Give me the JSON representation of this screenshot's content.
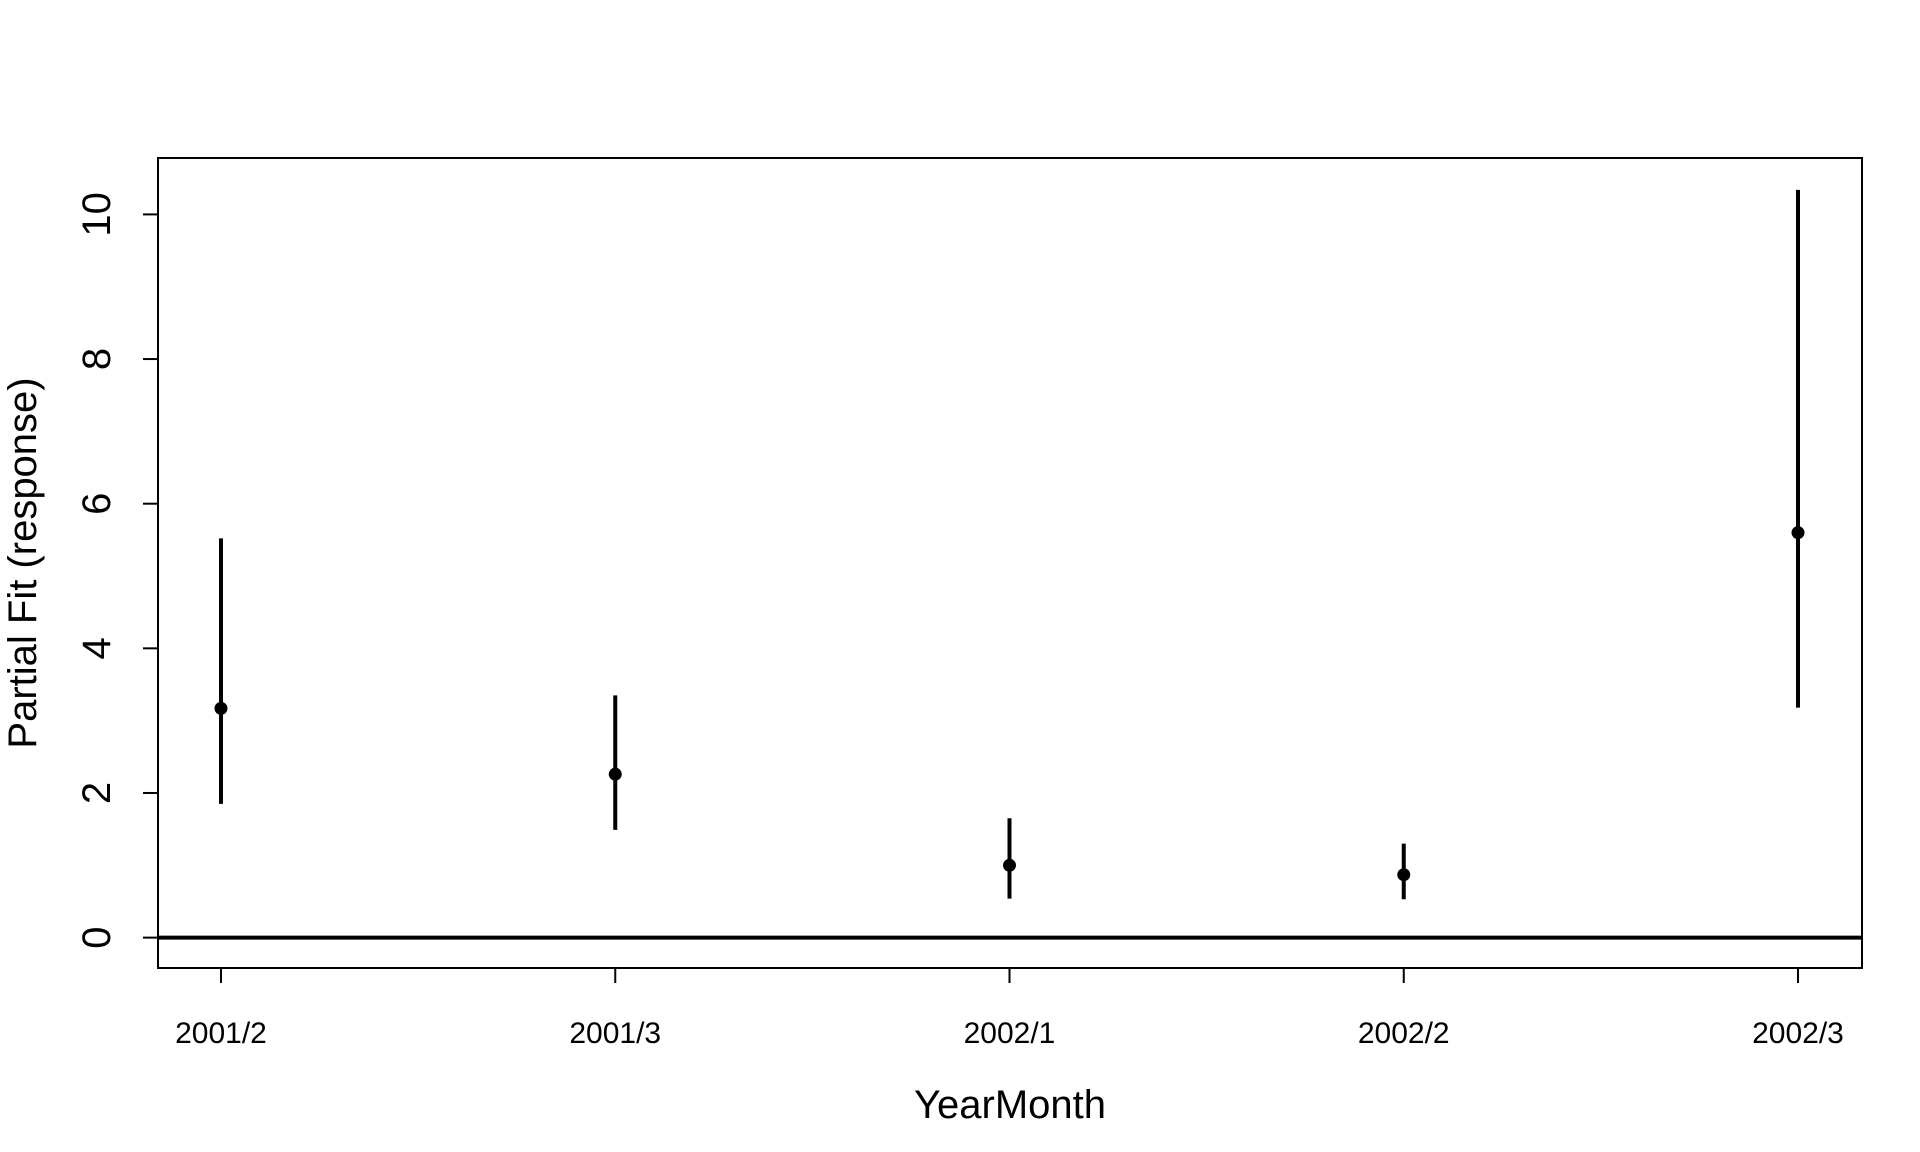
{
  "chart_data": {
    "type": "scatter",
    "title": "",
    "xlabel": "YearMonth",
    "ylabel": "Partial Fit (response)",
    "categories": [
      "2001/2",
      "2001/3",
      "2002/1",
      "2002/2",
      "2002/3"
    ],
    "series": [
      {
        "values": [
          3.17,
          2.26,
          1.0,
          0.87,
          5.6
        ],
        "lower": [
          1.85,
          1.49,
          0.54,
          0.53,
          3.18
        ],
        "upper": [
          5.52,
          3.35,
          1.65,
          1.3,
          10.34
        ]
      }
    ],
    "ylim": [
      -0.42,
      10.78
    ],
    "yticks": [
      0,
      2,
      4,
      6,
      8,
      10
    ],
    "reference_line": 0,
    "grid": false,
    "colors": {
      "marks": "#000000",
      "axes": "#000000",
      "background": "#ffffff"
    }
  }
}
